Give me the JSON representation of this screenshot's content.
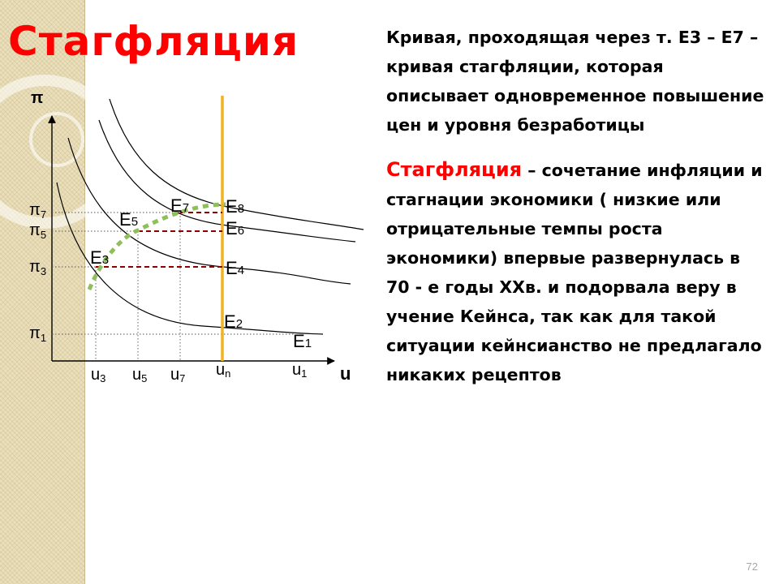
{
  "title": "Стагфляция",
  "diagram": {
    "axis_y": "π",
    "axis_x": "u",
    "pi_labels": [
      {
        "base": "π",
        "sub": "7"
      },
      {
        "base": "π",
        "sub": "5"
      },
      {
        "base": "π",
        "sub": "3"
      },
      {
        "base": "π",
        "sub": "1"
      }
    ],
    "u_labels": [
      {
        "base": "u",
        "sub": "3"
      },
      {
        "base": "u",
        "sub": "5"
      },
      {
        "base": "u",
        "sub": "7"
      },
      {
        "base": "u",
        "sub": "n"
      },
      {
        "base": "u",
        "sub": "1"
      }
    ],
    "points": [
      {
        "base": "E",
        "sub": "8"
      },
      {
        "base": "E",
        "sub": "7"
      },
      {
        "base": "E",
        "sub": "6"
      },
      {
        "base": "E",
        "sub": "5"
      },
      {
        "base": "E",
        "sub": "4"
      },
      {
        "base": "E",
        "sub": "3"
      },
      {
        "base": "E",
        "sub": "2"
      },
      {
        "base": "E",
        "sub": "1"
      }
    ],
    "colors": {
      "vertical_line": "#f0b323",
      "stagflation_curve": "#8fbf5a",
      "dashed_lines": "#8b0000"
    }
  },
  "text": {
    "p1": "Кривая, проходящая через т. Е3 – Е7 –",
    "p2": "кривая стагфляции, которая",
    "p3": "описывает одновременное повышение",
    "p4": "цен  и уровня безработицы",
    "p5_term": "Стагфляция",
    "p5_rest": " – сочетание инфляции и",
    "p6": "стагнации экономики ( низкие или",
    "p7": "отрицательные темпы роста",
    "p8": "экономики) впервые развернулась в",
    "p9": "70 - е годы ХХв. и подорвала веру в",
    "p10": "учение Кейнса, так как для такой",
    "p11": "ситуации кейнсианство не предлагало",
    "p12": "никаких рецептов"
  },
  "page_number": "72"
}
